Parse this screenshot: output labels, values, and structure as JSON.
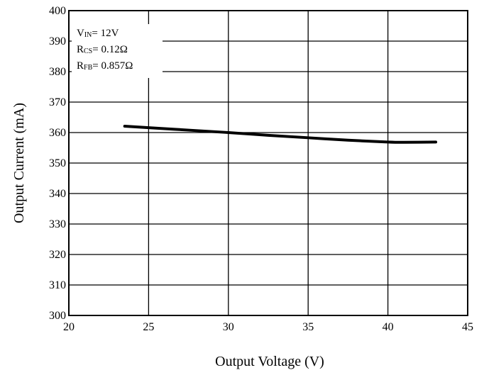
{
  "chart_data": {
    "type": "line",
    "title": "",
    "xlabel": "Output Voltage (V)",
    "ylabel": "Output Current (mA)",
    "xlim": [
      20,
      45
    ],
    "ylim": [
      300,
      400
    ],
    "xticks": [
      "20",
      "25",
      "30",
      "35",
      "40",
      "45"
    ],
    "yticks": [
      "300",
      "310",
      "320",
      "330",
      "340",
      "350",
      "360",
      "370",
      "380",
      "390",
      "400"
    ],
    "grid": true,
    "annotation": {
      "lines": [
        {
          "main": "V",
          "sub": "IN",
          "rest": "= 12V"
        },
        {
          "main": "R",
          "sub": "CS",
          "rest": "= 0.12Ω"
        },
        {
          "main": "R",
          "sub": "FB",
          "rest": "= 0.857Ω"
        }
      ],
      "placement": "top-left"
    },
    "series": [
      {
        "x": [
          23.5,
          25,
          27.5,
          30,
          32.5,
          35,
          37.5,
          40,
          41,
          43
        ],
        "y": [
          362.1,
          361.6,
          360.8,
          360.0,
          359.1,
          358.3,
          357.5,
          356.9,
          356.8,
          356.9
        ]
      }
    ]
  }
}
